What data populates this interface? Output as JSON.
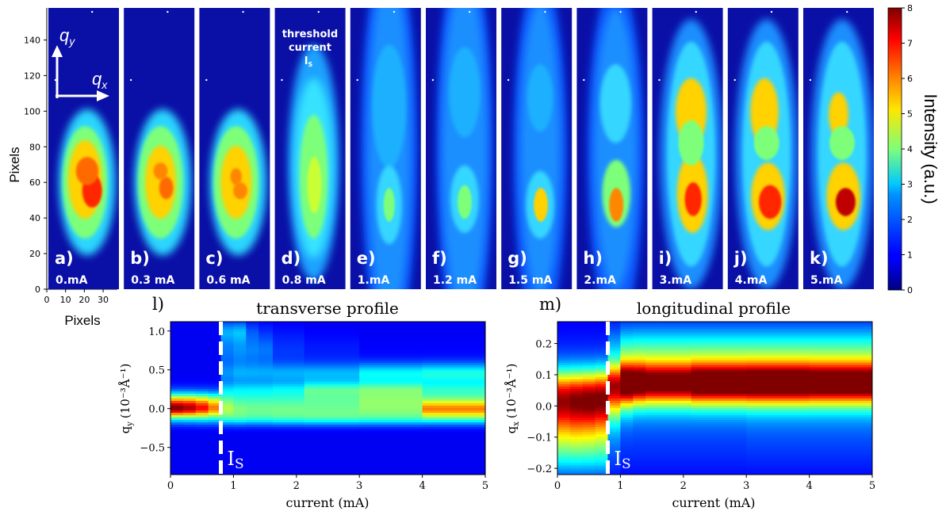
{
  "chart_data": [
    {
      "type": "heatmap",
      "panels": [
        {
          "letter": "a)",
          "current": "0.mA"
        },
        {
          "letter": "b)",
          "current": "0.3 mA"
        },
        {
          "letter": "c)",
          "current": "0.6 mA"
        },
        {
          "letter": "d)",
          "current": "0.8 mA"
        },
        {
          "letter": "e)",
          "current": "1.mA"
        },
        {
          "letter": "f)",
          "current": "1.2 mA"
        },
        {
          "letter": "g)",
          "current": "1.5 mA"
        },
        {
          "letter": "h)",
          "current": "2.mA"
        },
        {
          "letter": "i)",
          "current": "3.mA"
        },
        {
          "letter": "j)",
          "current": "4.mA"
        },
        {
          "letter": "k)",
          "current": "5.mA"
        }
      ],
      "ylabel": "Pixels",
      "xlabel": "Pixels",
      "yticks": [
        "0",
        "20",
        "40",
        "60",
        "80",
        "100",
        "120",
        "140"
      ],
      "xticks": [
        "0",
        "10",
        "20",
        "30"
      ],
      "ylim": [
        0,
        158
      ],
      "xlim": [
        0,
        38
      ],
      "threshold_annotation": [
        "threshold",
        "current",
        "I",
        "S"
      ],
      "axis_arrows": {
        "qy": [
          "q",
          "y"
        ],
        "qx": [
          "q",
          "x"
        ]
      },
      "colorbar": {
        "label": "Intensity (a.u.)",
        "ticks": [
          "0",
          "1",
          "2",
          "3",
          "4",
          "5",
          "6",
          "7",
          "8"
        ],
        "range": [
          0,
          8
        ]
      }
    },
    {
      "type": "heatmap",
      "panel_label": "l)",
      "title": "transverse profile",
      "ylabel_main": "q",
      "ylabel_sub": "y",
      "ylabel_units": "(10⁻³Å⁻¹)",
      "xlabel": "current (mA)",
      "xticks": [
        "0",
        "1",
        "2",
        "3",
        "4",
        "5"
      ],
      "yticks": [
        "−0.5",
        "0.0",
        "0.5",
        "1.0"
      ],
      "xlim": [
        0,
        5
      ],
      "ylim": [
        -0.85,
        1.12
      ],
      "threshold_x": 0.8,
      "threshold_label": "I",
      "threshold_sub": "S",
      "columns": [
        0.1,
        0.3,
        0.5,
        0.7,
        0.9,
        1.1,
        1.3,
        1.5,
        1.75,
        2.5,
        3.5,
        4.5
      ],
      "bands": [
        {
          "y": 0.0,
          "w": 0.07,
          "a": [
            6.0,
            5.6,
            5.0,
            4.2,
            2.6,
            2.2,
            2.1,
            2.1,
            2.1,
            2.0,
            2.2,
            4.2
          ]
        },
        {
          "y": 0.12,
          "w": 0.07,
          "a": [
            3.2,
            3.2,
            3.0,
            2.6,
            2.0,
            1.8,
            1.8,
            1.8,
            1.8,
            2.0,
            2.3,
            2.0
          ]
        },
        {
          "y": 0.25,
          "w": 0.07,
          "a": [
            0.3,
            0.3,
            0.3,
            0.3,
            1.4,
            1.5,
            1.5,
            1.5,
            1.6,
            2.3,
            2.4,
            1.8
          ]
        },
        {
          "y": 0.45,
          "w": 0.1,
          "a": [
            0.0,
            0.0,
            0.0,
            0.0,
            1.1,
            1.3,
            1.3,
            1.3,
            1.4,
            1.5,
            2.1,
            2.3
          ]
        },
        {
          "y": 0.75,
          "w": 0.15,
          "a": [
            0.0,
            0.0,
            0.0,
            0.0,
            1.0,
            1.2,
            1.1,
            1.0,
            0.5,
            0.3,
            0.1,
            0.1
          ]
        },
        {
          "y": 1.0,
          "w": 0.1,
          "a": [
            0.0,
            0.0,
            0.0,
            0.0,
            1.2,
            1.3,
            0.5,
            0.2,
            0.1,
            0.0,
            0.0,
            0.0
          ]
        },
        {
          "y": -0.12,
          "w": 0.07,
          "a": [
            1.3,
            1.4,
            1.5,
            1.5,
            2.0,
            2.1,
            2.0,
            2.0,
            2.1,
            2.2,
            2.1,
            2.0
          ]
        }
      ]
    },
    {
      "type": "heatmap",
      "panel_label": "m)",
      "title": "longitudinal profile",
      "ylabel_main": "q",
      "ylabel_sub": "x",
      "ylabel_units": "(10⁻³Å⁻¹)",
      "xlabel": "current (mA)",
      "xticks": [
        "0",
        "1",
        "2",
        "3",
        "4",
        "5"
      ],
      "yticks": [
        "−0.2",
        "−0.1",
        "0.0",
        "0.1",
        "0.2"
      ],
      "xlim": [
        0,
        5
      ],
      "ylim": [
        -0.22,
        0.27
      ],
      "threshold_x": 0.8,
      "threshold_label": "I",
      "threshold_sub": "S",
      "columns": [
        0.1,
        0.3,
        0.5,
        0.7,
        0.9,
        1.1,
        1.3,
        1.5,
        1.75,
        2.5,
        3.5,
        4.5
      ],
      "bands": [
        {
          "y": 0.03,
          "w": 0.06,
          "a": [
            5.2,
            5.4,
            5.6,
            5.5,
            3.5,
            2.0,
            1.5,
            1.5,
            1.5,
            1.5,
            1.5,
            1.5
          ]
        },
        {
          "y": 0.075,
          "w": 0.045,
          "a": [
            0.5,
            0.5,
            0.5,
            0.8,
            3.5,
            6.5,
            6.5,
            6.0,
            6.0,
            6.7,
            6.8,
            6.6
          ]
        },
        {
          "y": -0.07,
          "w": 0.07,
          "a": [
            3.5,
            3.6,
            3.5,
            3.3,
            1.0,
            0.5,
            0.5,
            0.5,
            0.5,
            0.5,
            0.6,
            0.6
          ]
        },
        {
          "y": 0.17,
          "w": 0.06,
          "a": [
            0.3,
            0.3,
            0.3,
            0.3,
            1.5,
            2.5,
            2.6,
            2.6,
            2.6,
            2.6,
            2.6,
            2.6
          ]
        },
        {
          "y": -0.17,
          "w": 0.05,
          "a": [
            1.0,
            1.0,
            1.0,
            1.0,
            0.3,
            0.2,
            0.2,
            0.2,
            0.2,
            0.2,
            0.2,
            0.2
          ]
        }
      ]
    }
  ]
}
